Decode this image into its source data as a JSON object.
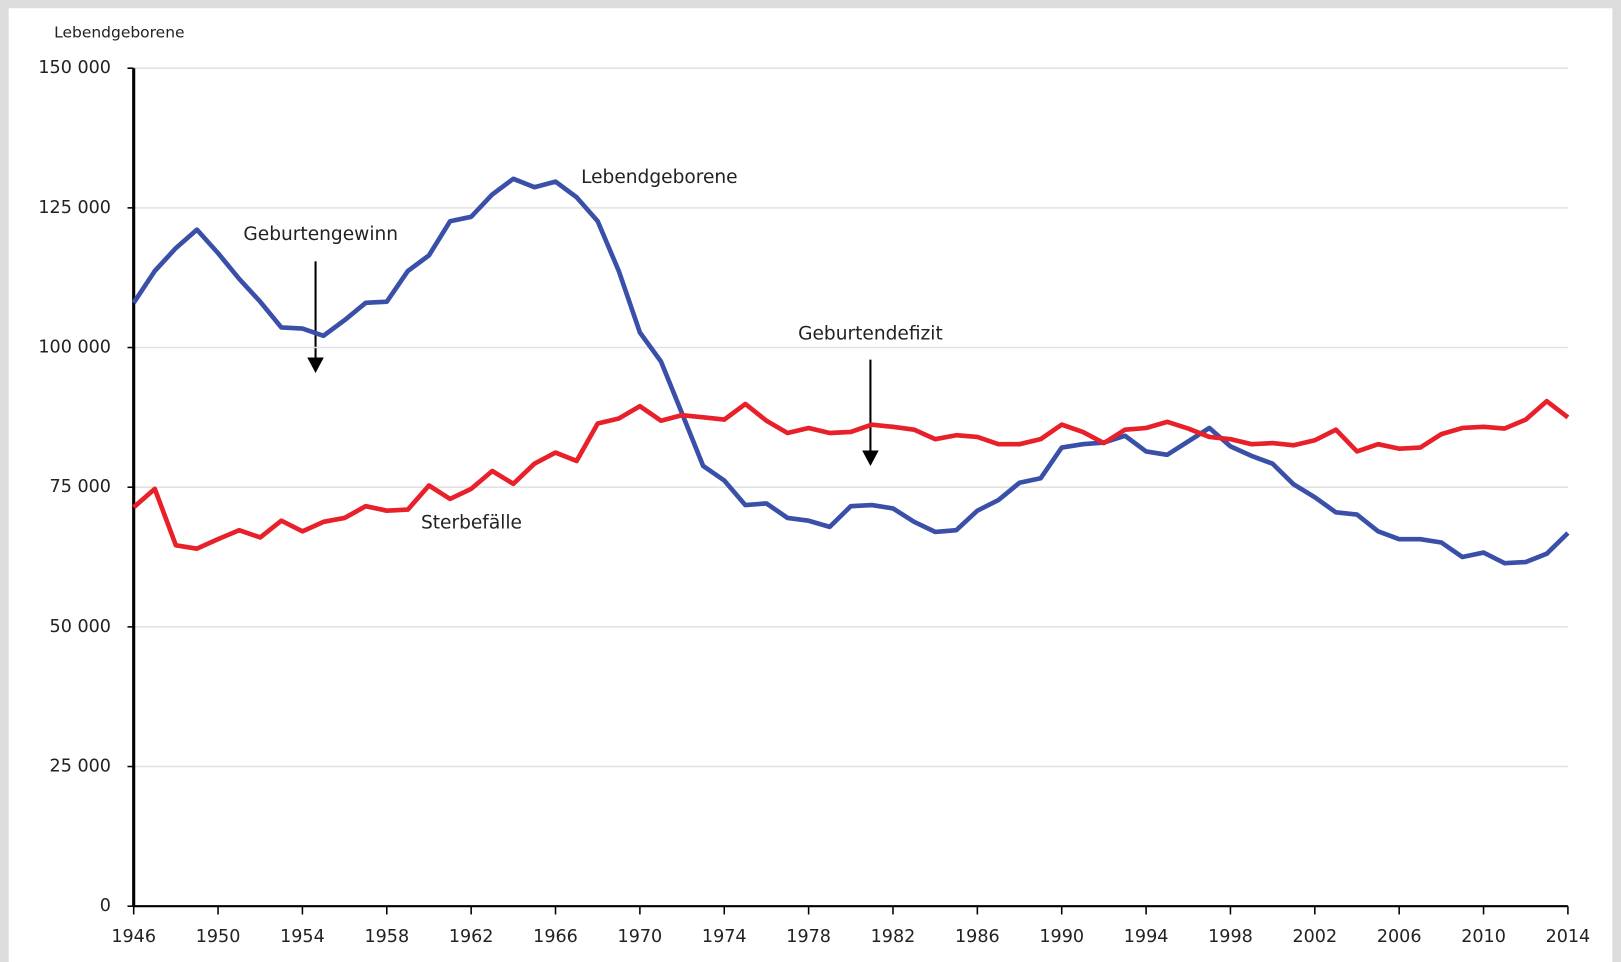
{
  "chart_data": {
    "type": "line",
    "y_label": "Lebendgeborene",
    "annotations": [
      "Geburtengewinn",
      "Geburtendefizit"
    ],
    "x": [
      1946,
      1947,
      1948,
      1949,
      1950,
      1951,
      1952,
      1953,
      1954,
      1955,
      1956,
      1957,
      1958,
      1959,
      1960,
      1961,
      1962,
      1963,
      1964,
      1965,
      1966,
      1967,
      1968,
      1969,
      1970,
      1971,
      1972,
      1973,
      1974,
      1975,
      1976,
      1977,
      1978,
      1979,
      1980,
      1981,
      1982,
      1983,
      1984,
      1985,
      1986,
      1987,
      1988,
      1989,
      1990,
      1991,
      1992,
      1993,
      1994,
      1995,
      1996,
      1997,
      1998,
      1999,
      2000,
      2001,
      2002,
      2003,
      2004,
      2005,
      2006,
      2007,
      2008,
      2009,
      2010,
      2011,
      2012,
      2013,
      2014
    ],
    "series": [
      {
        "name": "Lebendgeborene",
        "color": "#3a4fa8",
        "values": [
          108000,
          113700,
          117800,
          121100,
          116900,
          112300,
          108200,
          103600,
          103400,
          102100,
          104900,
          108000,
          108200,
          113700,
          116500,
          122600,
          123400,
          127400,
          130200,
          128700,
          129700,
          126900,
          122600,
          113700,
          102700,
          97500,
          88200,
          78800,
          76200,
          71800,
          72100,
          69500,
          69000,
          67900,
          71600,
          71800,
          71200,
          68800,
          67000,
          67300,
          70800,
          72700,
          75800,
          76600,
          82100,
          82700,
          83000,
          84200,
          81400,
          80800,
          83200,
          85600,
          82300,
          80600,
          79200,
          75500,
          73200,
          70500,
          70100,
          67100,
          65700,
          65700,
          65100,
          62500,
          63300,
          61400,
          61600,
          63100,
          66800
        ]
      },
      {
        "name": "Sterbefälle",
        "color": "#e8202a",
        "values": [
          71400,
          74700,
          64600,
          64000,
          65700,
          67300,
          66000,
          69000,
          67100,
          68800,
          69500,
          71600,
          70800,
          71000,
          75300,
          72900,
          74700,
          77900,
          75600,
          79200,
          81200,
          79700,
          86400,
          87300,
          89500,
          86900,
          87900,
          87500,
          87100,
          89900,
          86900,
          84700,
          85600,
          84700,
          84900,
          86200,
          85800,
          85300,
          83600,
          84300,
          84000,
          82700,
          82700,
          83600,
          86200,
          84900,
          82900,
          85300,
          85600,
          86700,
          85500,
          84000,
          83600,
          82700,
          82900,
          82500,
          83400,
          85300,
          81400,
          82700,
          81900,
          82100,
          84500,
          85600,
          85800,
          85500,
          87100,
          90400,
          87500
        ]
      }
    ],
    "xlim": [
      1946,
      2014
    ],
    "xticks": [
      1946,
      1950,
      1954,
      1958,
      1962,
      1966,
      1970,
      1974,
      1978,
      1982,
      1986,
      1990,
      1994,
      1998,
      2002,
      2006,
      2010,
      2014
    ],
    "ylim": [
      0,
      150000
    ],
    "yticks": [
      0,
      {
        "value": 25000,
        "label": "25 000"
      },
      {
        "value": 50000,
        "label": "50 000"
      },
      {
        "value": 75000,
        "label": "75 000"
      },
      {
        "value": 100000,
        "label": "100 000"
      },
      {
        "value": 125000,
        "label": "125 000"
      },
      {
        "value": 150000,
        "label": "150 000"
      }
    ],
    "grid": true
  }
}
